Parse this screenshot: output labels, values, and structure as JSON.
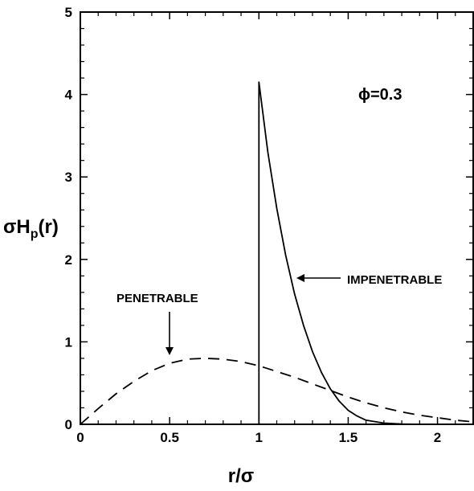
{
  "chart_data": {
    "type": "line",
    "xlabel_main": "r/",
    "xlabel_sigma": "σ",
    "ylabel_sigma": "σ",
    "ylabel_H": "H",
    "ylabel_sub": "p",
    "ylabel_arg": "(r)",
    "xlim": [
      0,
      2.2
    ],
    "ylim": [
      0,
      5
    ],
    "x_ticks": [
      0,
      0.5,
      1,
      1.5,
      2
    ],
    "x_tick_labels": [
      "0",
      "0.5",
      "1",
      "1.5",
      "2"
    ],
    "y_ticks": [
      0,
      1,
      2,
      3,
      4,
      5
    ],
    "y_tick_labels": [
      "0",
      "1",
      "2",
      "3",
      "4",
      "5"
    ],
    "grid": false,
    "annotations": {
      "phi": "ϕ=0.3",
      "impenetrable": "IMPENETRABLE",
      "penetrable": "PENETRABLE"
    },
    "series": [
      {
        "style": "solid",
        "x": [
          1.0,
          1.0,
          1.05,
          1.1,
          1.15,
          1.2,
          1.25,
          1.3,
          1.35,
          1.4,
          1.45,
          1.5,
          1.55,
          1.6,
          1.7,
          1.8,
          1.9,
          2.0
        ],
        "y": [
          0,
          4.15,
          3.3,
          2.62,
          2.05,
          1.58,
          1.2,
          0.88,
          0.63,
          0.43,
          0.28,
          0.17,
          0.1,
          0.05,
          0.015,
          0.003,
          0.0,
          0.0
        ]
      },
      {
        "style": "dashed",
        "x": [
          0,
          0.1,
          0.2,
          0.3,
          0.4,
          0.5,
          0.6,
          0.7,
          0.8,
          0.9,
          1.0,
          1.1,
          1.2,
          1.3,
          1.4,
          1.5,
          1.6,
          1.7,
          1.8,
          1.9,
          2.0,
          2.1,
          2.2
        ],
        "y": [
          0,
          0.19,
          0.37,
          0.52,
          0.65,
          0.74,
          0.79,
          0.8,
          0.79,
          0.76,
          0.71,
          0.64,
          0.57,
          0.49,
          0.41,
          0.33,
          0.26,
          0.2,
          0.15,
          0.11,
          0.08,
          0.05,
          0.03
        ]
      }
    ]
  }
}
